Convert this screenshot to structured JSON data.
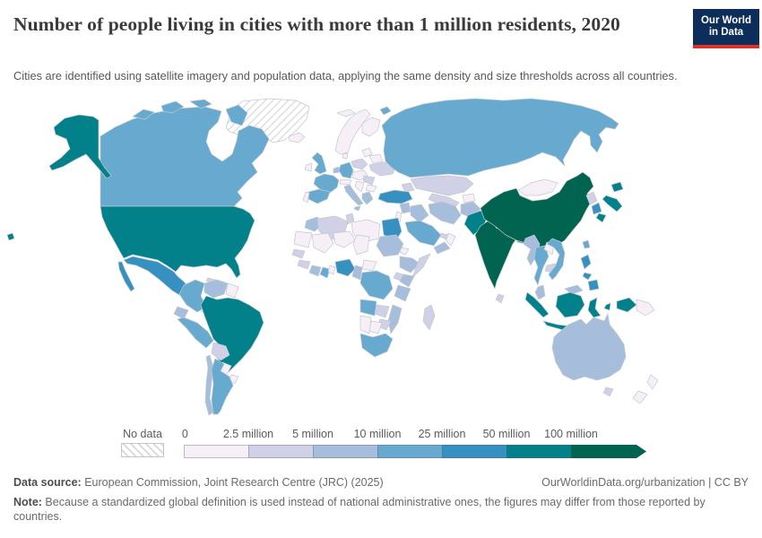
{
  "header": {
    "title": "Number of people living in cities with more than 1 million residents, 2020",
    "subtitle": "Cities are identified using satellite imagery and population data, applying the same density and size thresholds across all countries.",
    "logo": {
      "line1": "Our World",
      "line2": "in Data",
      "bg_color": "#0d2e5b",
      "stripe_color": "#d8352a"
    }
  },
  "chart_data": {
    "type": "heatmap",
    "subtype": "world_choropleth_map",
    "title": "Number of people living in cities with more than 1 million residents",
    "year": "2020",
    "legend": {
      "no_data_label": "No data",
      "tick_labels": [
        "0",
        "2.5 million",
        "5 million",
        "10 million",
        "25 million",
        "50 million",
        "100 million"
      ],
      "bin_ranges": [
        "0-2.5 million",
        "2.5-5 million",
        "5-10 million",
        "10-25 million",
        "25-50 million",
        "50-100 million",
        "100 million and more"
      ],
      "bin_colors": [
        "#f6eff7",
        "#d0d1e6",
        "#a6bddb",
        "#67a9cf",
        "#3690c0",
        "#02818a",
        "#016450"
      ],
      "position": "bottom"
    },
    "countries": {
      "greenland": "nodata",
      "china": 6,
      "india": 6,
      "united_states": 5,
      "brazil": 5,
      "pakistan": 5,
      "indonesia": 5,
      "japan": 5,
      "mexico": 4,
      "nigeria": 4,
      "egypt": 4,
      "turkey": 4,
      "south_korea": 4,
      "philippines": 4,
      "bangladesh": 4,
      "canada": 3,
      "russia": 3,
      "united_kingdom": 3,
      "france": 3,
      "spain": 3,
      "germany": 3,
      "argentina": 3,
      "peru": 3,
      "colombia": 3,
      "saudi_arabia": 3,
      "dr_congo": 3,
      "angola": 3,
      "south_africa": 3,
      "ghana": 3,
      "vietnam": 3,
      "thailand": 3,
      "taiwan": 3,
      "australia": 2,
      "italy": 2,
      "greece": 2,
      "morocco": 2,
      "iran": 2,
      "iraq": 2,
      "syria": 2,
      "afghanistan": 2,
      "yemen": 2,
      "sudan": 2,
      "ethiopia": 2,
      "kenya": 2,
      "tanzania": 2,
      "cameroon": 2,
      "ivory_coast": 2,
      "mozambique": 2,
      "venezuela": 2,
      "ecuador": 2,
      "chile": 2,
      "myanmar": 2,
      "malaysia": 2,
      "benelux": 2,
      "kazakhstan": 1,
      "ukraine": 1,
      "poland": 1,
      "romania": 1,
      "algeria": 1,
      "tunisia": 1,
      "senegal": 1,
      "guinea": 1,
      "zambia": 1,
      "zimbabwe": 1,
      "madagascar": 1,
      "bolivia": 1,
      "cuba": 1,
      "hispaniola": 1,
      "north_korea": 1,
      "cambodia": 1,
      "nepal": 1,
      "sri_lanka": 1,
      "uae": 1,
      "somalia": 1,
      "central_asia": 1,
      "caucasus": 1,
      "guatemala": 1,
      "tasmania": 1,
      "uganda": 1,
      "iceland": 0,
      "ireland": 0,
      "portugal": 0,
      "norway_sweden": 0,
      "finland": 0,
      "denmark": 0,
      "baltics": 0,
      "belarus": 0,
      "balkans": 0,
      "bulgaria": 0,
      "czech_hungary": 0,
      "alps": 0,
      "libya": 0,
      "mali": 0,
      "niger": 0,
      "chad": 0,
      "mauritania": 0,
      "namibia": 0,
      "botswana": 0,
      "car": 0,
      "benin_togo": 0,
      "eritrea": 0,
      "israel_jordan": 0,
      "oman": 0,
      "laos": 0,
      "mongolia": 0,
      "paraguay": 0,
      "uruguay": 0,
      "guyanas": 0,
      "central_america": 0,
      "papua_new_guinea": 0,
      "new_zealand": 0,
      "svalbard": 0,
      "kyrgyz_tajik": 0
    }
  },
  "footer": {
    "source_label": "Data source:",
    "source_text": " European Commission, Joint Research Centre (JRC) (2025)",
    "link_text": "OurWorldinData.org/urbanization | CC BY",
    "note_label": "Note:",
    "note_text": " Because a standardized global definition is used instead of national administrative ones, the figures may differ from those reported by countries."
  }
}
